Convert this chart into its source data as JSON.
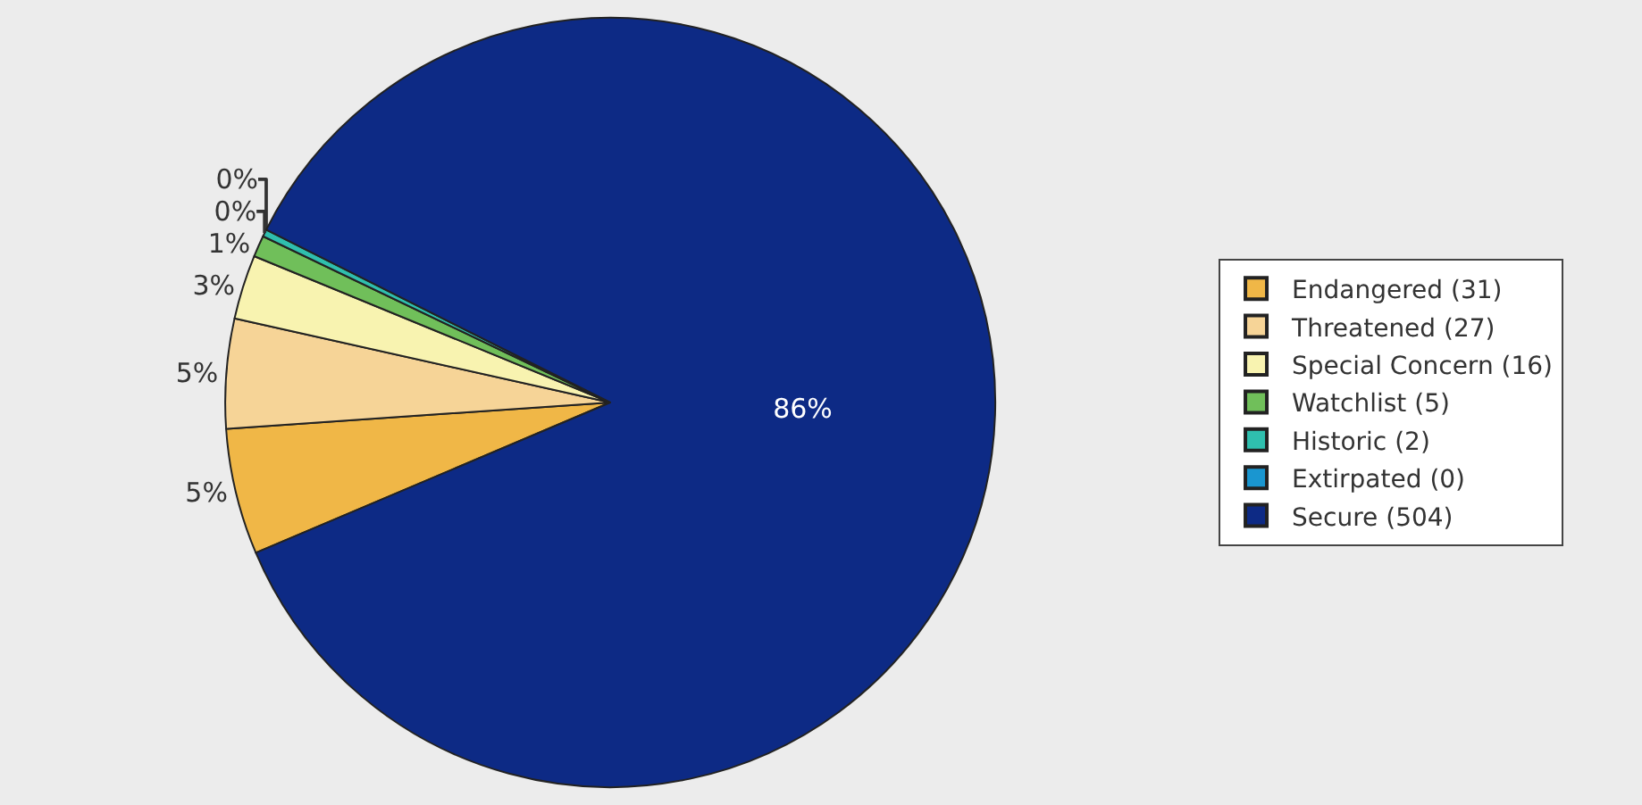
{
  "chart_data": {
    "type": "pie",
    "categories": [
      "Endangered (31)",
      "Threatened (27)",
      "Special Concern (16)",
      "Watchlist (5)",
      "Historic (2)",
      "Extirpated (0)",
      "Secure (504)"
    ],
    "values": [
      5.3,
      4.6,
      2.7,
      0.9,
      0.3,
      0,
      86.2
    ],
    "colors": [
      "#f0b747",
      "#f6d497",
      "#f8f3b0",
      "#70bf5a",
      "#2fbfae",
      "#1a96d0",
      "#0d2a85"
    ],
    "value_labels": [
      "5%",
      "5%",
      "3%",
      "1%",
      "0%",
      "0%",
      "86%"
    ],
    "legend": "right"
  }
}
